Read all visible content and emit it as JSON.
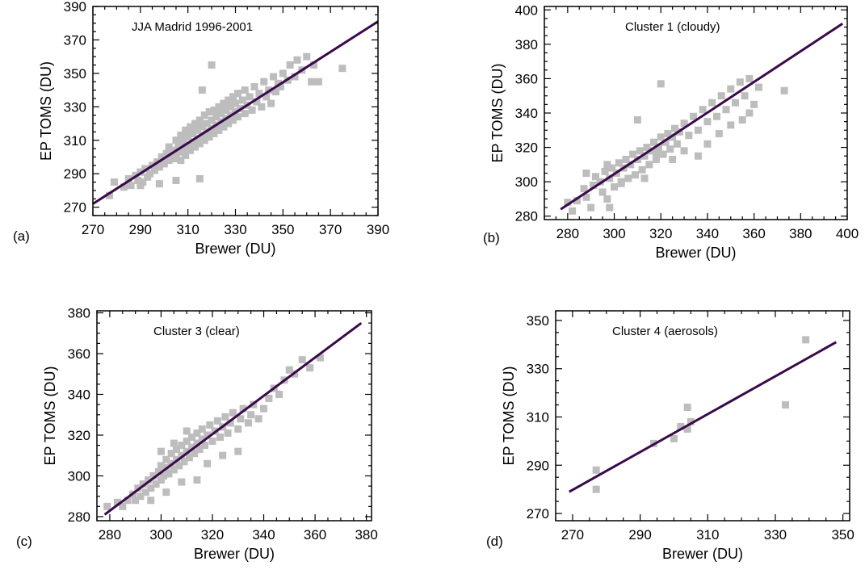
{
  "figure": {
    "marker_color": "#bdbdbd",
    "line_color": "#3a0a4a"
  },
  "chart_data": [
    {
      "panel_label": "(a)",
      "type": "scatter",
      "title": "JJA Madrid 1996-2001",
      "xlabel": "Brewer (DU)",
      "ylabel": "EP TOMS (DU)",
      "xlim": [
        270,
        390
      ],
      "ylim": [
        265,
        390
      ],
      "xticks": [
        270,
        290,
        310,
        330,
        350,
        370,
        390
      ],
      "yticks": [
        270,
        290,
        310,
        330,
        350,
        370,
        390
      ],
      "fit_line": [
        [
          270,
          272
        ],
        [
          390,
          381
        ]
      ],
      "points": [
        [
          277,
          277
        ],
        [
          279,
          285
        ],
        [
          283,
          282
        ],
        [
          285,
          287
        ],
        [
          286,
          283
        ],
        [
          288,
          289
        ],
        [
          289,
          286
        ],
        [
          290,
          291
        ],
        [
          291,
          285
        ],
        [
          292,
          293
        ],
        [
          293,
          288
        ],
        [
          294,
          290
        ],
        [
          295,
          295
        ],
        [
          296,
          292
        ],
        [
          297,
          297
        ],
        [
          298,
          294
        ],
        [
          299,
          300
        ],
        [
          300,
          296
        ],
        [
          301,
          302
        ],
        [
          302,
          298
        ],
        [
          302,
          306
        ],
        [
          303,
          300
        ],
        [
          304,
          304
        ],
        [
          305,
          299
        ],
        [
          305,
          310
        ],
        [
          306,
          303
        ],
        [
          306,
          307
        ],
        [
          307,
          298
        ],
        [
          307,
          313
        ],
        [
          308,
          305
        ],
        [
          308,
          309
        ],
        [
          309,
          301
        ],
        [
          309,
          316
        ],
        [
          310,
          307
        ],
        [
          310,
          312
        ],
        [
          311,
          304
        ],
        [
          311,
          318
        ],
        [
          312,
          309
        ],
        [
          312,
          314
        ],
        [
          313,
          306
        ],
        [
          313,
          320
        ],
        [
          314,
          311
        ],
        [
          314,
          316
        ],
        [
          315,
          308
        ],
        [
          315,
          322
        ],
        [
          316,
          313
        ],
        [
          316,
          318
        ],
        [
          317,
          310
        ],
        [
          317,
          325
        ],
        [
          318,
          315
        ],
        [
          318,
          320
        ],
        [
          319,
          312
        ],
        [
          319,
          327
        ],
        [
          320,
          317
        ],
        [
          320,
          322
        ],
        [
          321,
          314
        ],
        [
          321,
          328
        ],
        [
          322,
          319
        ],
        [
          322,
          324
        ],
        [
          323,
          316
        ],
        [
          323,
          330
        ],
        [
          324,
          321
        ],
        [
          324,
          326
        ],
        [
          325,
          318
        ],
        [
          325,
          332
        ],
        [
          326,
          323
        ],
        [
          326,
          328
        ],
        [
          327,
          320
        ],
        [
          327,
          334
        ],
        [
          328,
          325
        ],
        [
          328,
          330
        ],
        [
          329,
          322
        ],
        [
          329,
          336
        ],
        [
          330,
          327
        ],
        [
          330,
          332
        ],
        [
          331,
          324
        ],
        [
          331,
          338
        ],
        [
          332,
          329
        ],
        [
          333,
          334
        ],
        [
          334,
          326
        ],
        [
          334,
          340
        ],
        [
          335,
          331
        ],
        [
          336,
          336
        ],
        [
          337,
          328
        ],
        [
          338,
          342
        ],
        [
          339,
          333
        ],
        [
          340,
          338
        ],
        [
          341,
          330
        ],
        [
          342,
          345
        ],
        [
          343,
          336
        ],
        [
          344,
          340
        ],
        [
          345,
          332
        ],
        [
          346,
          348
        ],
        [
          347,
          339
        ],
        [
          348,
          344
        ],
        [
          349,
          342
        ],
        [
          350,
          350
        ],
        [
          352,
          346
        ],
        [
          353,
          355
        ],
        [
          355,
          348
        ],
        [
          356,
          358
        ],
        [
          358,
          352
        ],
        [
          360,
          360
        ],
        [
          362,
          345
        ],
        [
          363,
          355
        ],
        [
          365,
          345
        ],
        [
          375,
          353
        ],
        [
          320,
          355
        ],
        [
          316,
          340
        ],
        [
          300,
          296
        ],
        [
          298,
          284
        ],
        [
          305,
          286
        ],
        [
          315,
          287
        ],
        [
          290,
          283
        ]
      ]
    },
    {
      "panel_label": "(b)",
      "type": "scatter",
      "title": "Cluster 1 (cloudy)",
      "xlabel": "Brewer (DU)",
      "ylabel": "EP TOMS (DU)",
      "xlim": [
        270,
        400
      ],
      "ylim": [
        278,
        402
      ],
      "xticks": [
        280,
        300,
        320,
        340,
        360,
        380,
        400
      ],
      "yticks": [
        280,
        300,
        320,
        340,
        360,
        380,
        400
      ],
      "fit_line": [
        [
          277,
          284
        ],
        [
          398,
          392
        ]
      ],
      "points": [
        [
          280,
          288
        ],
        [
          282,
          283
        ],
        [
          284,
          289
        ],
        [
          287,
          296
        ],
        [
          288,
          291
        ],
        [
          290,
          285
        ],
        [
          291,
          298
        ],
        [
          292,
          303
        ],
        [
          294,
          300
        ],
        [
          295,
          294
        ],
        [
          296,
          306
        ],
        [
          297,
          290
        ],
        [
          298,
          302
        ],
        [
          299,
          308
        ],
        [
          300,
          297
        ],
        [
          301,
          305
        ],
        [
          302,
          311
        ],
        [
          303,
          299
        ],
        [
          304,
          308
        ],
        [
          305,
          313
        ],
        [
          306,
          302
        ],
        [
          307,
          310
        ],
        [
          308,
          316
        ],
        [
          309,
          304
        ],
        [
          310,
          313
        ],
        [
          311,
          318
        ],
        [
          312,
          307
        ],
        [
          313,
          315
        ],
        [
          314,
          320
        ],
        [
          315,
          310
        ],
        [
          316,
          318
        ],
        [
          317,
          323
        ],
        [
          318,
          313
        ],
        [
          319,
          320
        ],
        [
          320,
          326
        ],
        [
          321,
          316
        ],
        [
          322,
          323
        ],
        [
          323,
          328
        ],
        [
          324,
          319
        ],
        [
          325,
          326
        ],
        [
          326,
          331
        ],
        [
          327,
          322
        ],
        [
          328,
          329
        ],
        [
          330,
          334
        ],
        [
          332,
          327
        ],
        [
          334,
          338
        ],
        [
          336,
          330
        ],
        [
          338,
          342
        ],
        [
          340,
          335
        ],
        [
          342,
          346
        ],
        [
          344,
          338
        ],
        [
          346,
          350
        ],
        [
          348,
          342
        ],
        [
          350,
          354
        ],
        [
          352,
          346
        ],
        [
          354,
          358
        ],
        [
          356,
          350
        ],
        [
          358,
          360
        ],
        [
          360,
          345
        ],
        [
          362,
          355
        ],
        [
          373,
          353
        ],
        [
          320,
          357
        ],
        [
          310,
          336
        ],
        [
          298,
          285
        ],
        [
          303,
          300
        ],
        [
          297,
          310
        ],
        [
          288,
          305
        ],
        [
          313,
          302
        ],
        [
          318,
          316
        ],
        [
          325,
          313
        ],
        [
          330,
          318
        ],
        [
          336,
          315
        ],
        [
          340,
          322
        ],
        [
          345,
          328
        ],
        [
          350,
          333
        ],
        [
          355,
          336
        ],
        [
          358,
          340
        ]
      ]
    },
    {
      "panel_label": "(c)",
      "type": "scatter",
      "title": "Cluster 3 (clear)",
      "xlabel": "Brewer (DU)",
      "ylabel": "EP TOMS (DU)",
      "xlim": [
        275,
        382
      ],
      "ylim": [
        278,
        381
      ],
      "xticks": [
        280,
        300,
        320,
        340,
        360,
        380
      ],
      "yticks": [
        280,
        300,
        320,
        340,
        360,
        380
      ],
      "fit_line": [
        [
          278,
          281
        ],
        [
          378,
          375
        ]
      ],
      "points": [
        [
          279,
          285
        ],
        [
          283,
          287
        ],
        [
          285,
          285
        ],
        [
          287,
          288
        ],
        [
          289,
          291
        ],
        [
          290,
          288
        ],
        [
          291,
          294
        ],
        [
          292,
          290
        ],
        [
          293,
          296
        ],
        [
          294,
          292
        ],
        [
          295,
          298
        ],
        [
          296,
          294
        ],
        [
          297,
          300
        ],
        [
          298,
          296
        ],
        [
          299,
          302
        ],
        [
          300,
          298
        ],
        [
          300,
          305
        ],
        [
          301,
          300
        ],
        [
          302,
          304
        ],
        [
          302,
          308
        ],
        [
          303,
          301
        ],
        [
          304,
          306
        ],
        [
          304,
          311
        ],
        [
          305,
          303
        ],
        [
          306,
          308
        ],
        [
          306,
          313
        ],
        [
          307,
          305
        ],
        [
          308,
          310
        ],
        [
          308,
          315
        ],
        [
          309,
          307
        ],
        [
          310,
          312
        ],
        [
          310,
          317
        ],
        [
          311,
          309
        ],
        [
          312,
          314
        ],
        [
          312,
          319
        ],
        [
          313,
          311
        ],
        [
          314,
          316
        ],
        [
          314,
          321
        ],
        [
          315,
          313
        ],
        [
          316,
          318
        ],
        [
          316,
          323
        ],
        [
          317,
          315
        ],
        [
          318,
          320
        ],
        [
          319,
          325
        ],
        [
          320,
          317
        ],
        [
          321,
          322
        ],
        [
          322,
          327
        ],
        [
          323,
          319
        ],
        [
          324,
          324
        ],
        [
          325,
          329
        ],
        [
          326,
          321
        ],
        [
          327,
          326
        ],
        [
          328,
          331
        ],
        [
          330,
          323
        ],
        [
          331,
          328
        ],
        [
          332,
          333
        ],
        [
          334,
          326
        ],
        [
          335,
          330
        ],
        [
          336,
          335
        ],
        [
          338,
          328
        ],
        [
          340,
          333
        ],
        [
          342,
          338
        ],
        [
          344,
          343
        ],
        [
          346,
          340
        ],
        [
          348,
          347
        ],
        [
          350,
          352
        ],
        [
          352,
          350
        ],
        [
          355,
          357
        ],
        [
          358,
          353
        ],
        [
          362,
          358
        ],
        [
          296,
          288
        ],
        [
          302,
          292
        ],
        [
          308,
          297
        ],
        [
          314,
          298
        ],
        [
          318,
          306
        ],
        [
          324,
          310
        ],
        [
          330,
          312
        ],
        [
          300,
          312
        ],
        [
          305,
          316
        ],
        [
          310,
          322
        ]
      ]
    },
    {
      "panel_label": "(d)",
      "type": "scatter",
      "title": "Cluster 4 (aerosols)",
      "xlabel": "Brewer (DU)",
      "ylabel": "EP TOMS (DU)",
      "xlim": [
        265,
        352
      ],
      "ylim": [
        267,
        354
      ],
      "xticks": [
        270,
        290,
        310,
        330,
        350
      ],
      "yticks": [
        270,
        290,
        310,
        330,
        350
      ],
      "fit_line": [
        [
          269,
          279
        ],
        [
          348,
          341
        ]
      ],
      "points": [
        [
          277,
          288
        ],
        [
          277,
          280
        ],
        [
          294,
          299
        ],
        [
          300,
          301
        ],
        [
          302,
          306
        ],
        [
          304,
          314
        ],
        [
          304,
          305
        ],
        [
          305,
          308
        ],
        [
          333,
          315
        ],
        [
          339,
          342
        ]
      ]
    }
  ]
}
